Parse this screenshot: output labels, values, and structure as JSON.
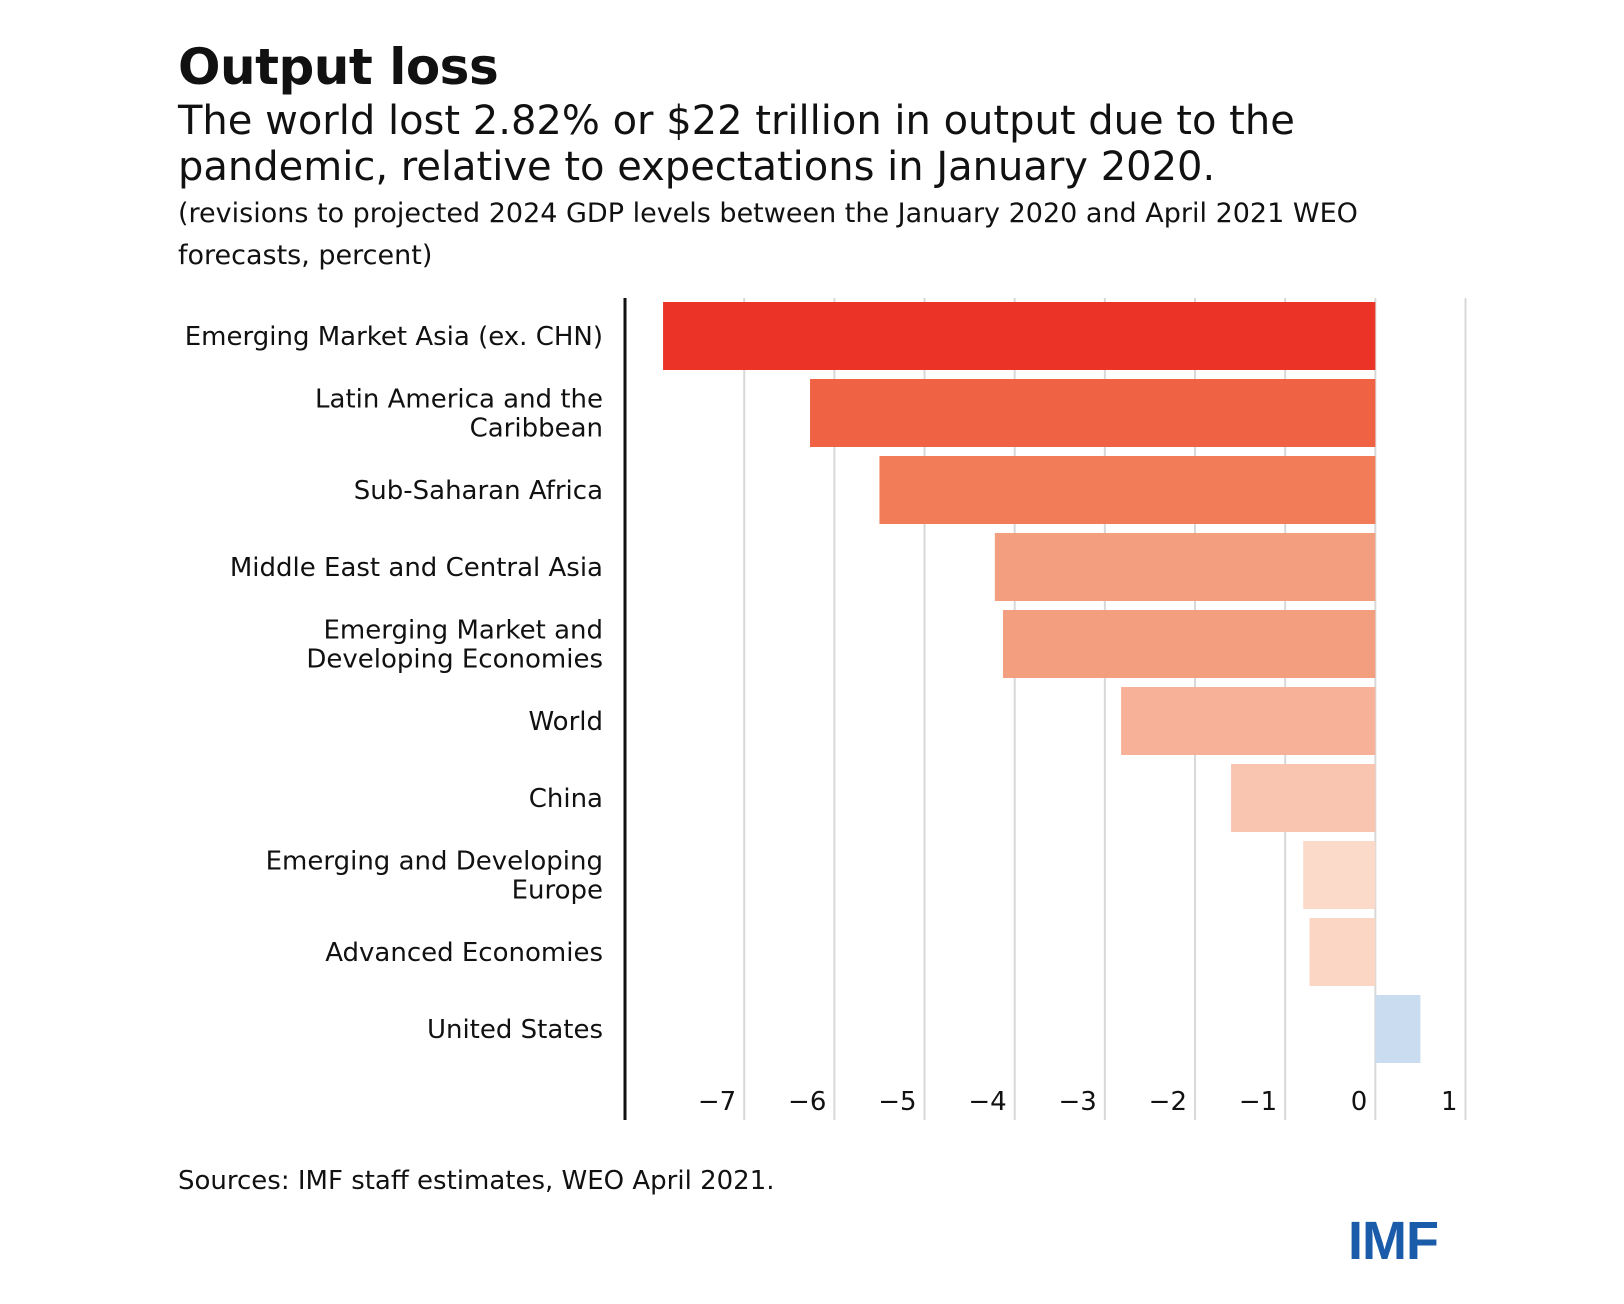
{
  "title": "Output loss",
  "subtitle": "The world lost 2.82% or $22 trillion in output due to the pandemic, relative to expectations in January 2020.",
  "note": "(revisions to projected 2024 GDP levels between the January 2020 and April 2021 WEO forecasts, percent)",
  "source": "Sources: IMF staff estimates, WEO April 2021.",
  "logo": "IMF",
  "chart_data": {
    "type": "bar",
    "orientation": "horizontal",
    "categories": [
      [
        "Emerging Market Asia (ex. CHN)"
      ],
      [
        "Latin America and the",
        "Caribbean"
      ],
      [
        "Sub-Saharan Africa"
      ],
      [
        "Middle East and Central Asia"
      ],
      [
        "Emerging Market and",
        "Developing Economies"
      ],
      [
        "World"
      ],
      [
        "China"
      ],
      [
        "Emerging and Developing",
        "Europe"
      ],
      [
        "Advanced Economies"
      ],
      [
        "United States"
      ]
    ],
    "values": [
      -7.9,
      -6.27,
      -5.5,
      -4.22,
      -4.13,
      -2.82,
      -1.6,
      -0.8,
      -0.73,
      0.5
    ],
    "colors": [
      "#ec3327",
      "#f06244",
      "#f27b58",
      "#f49e80",
      "#f49e80",
      "#f7b199",
      "#f9c4b0",
      "#fcdaca",
      "#fcd6c4",
      "#c9dcf0"
    ],
    "xlim": [
      -8.3,
      1.05
    ],
    "xticks": [
      -7,
      -6,
      -5,
      -4,
      -3,
      -2,
      -1,
      0,
      1
    ],
    "xtick_labels": [
      "−7",
      "−6",
      "−5",
      "−4",
      "−3",
      "−2",
      "−1",
      "0",
      "1"
    ],
    "grid": true
  }
}
